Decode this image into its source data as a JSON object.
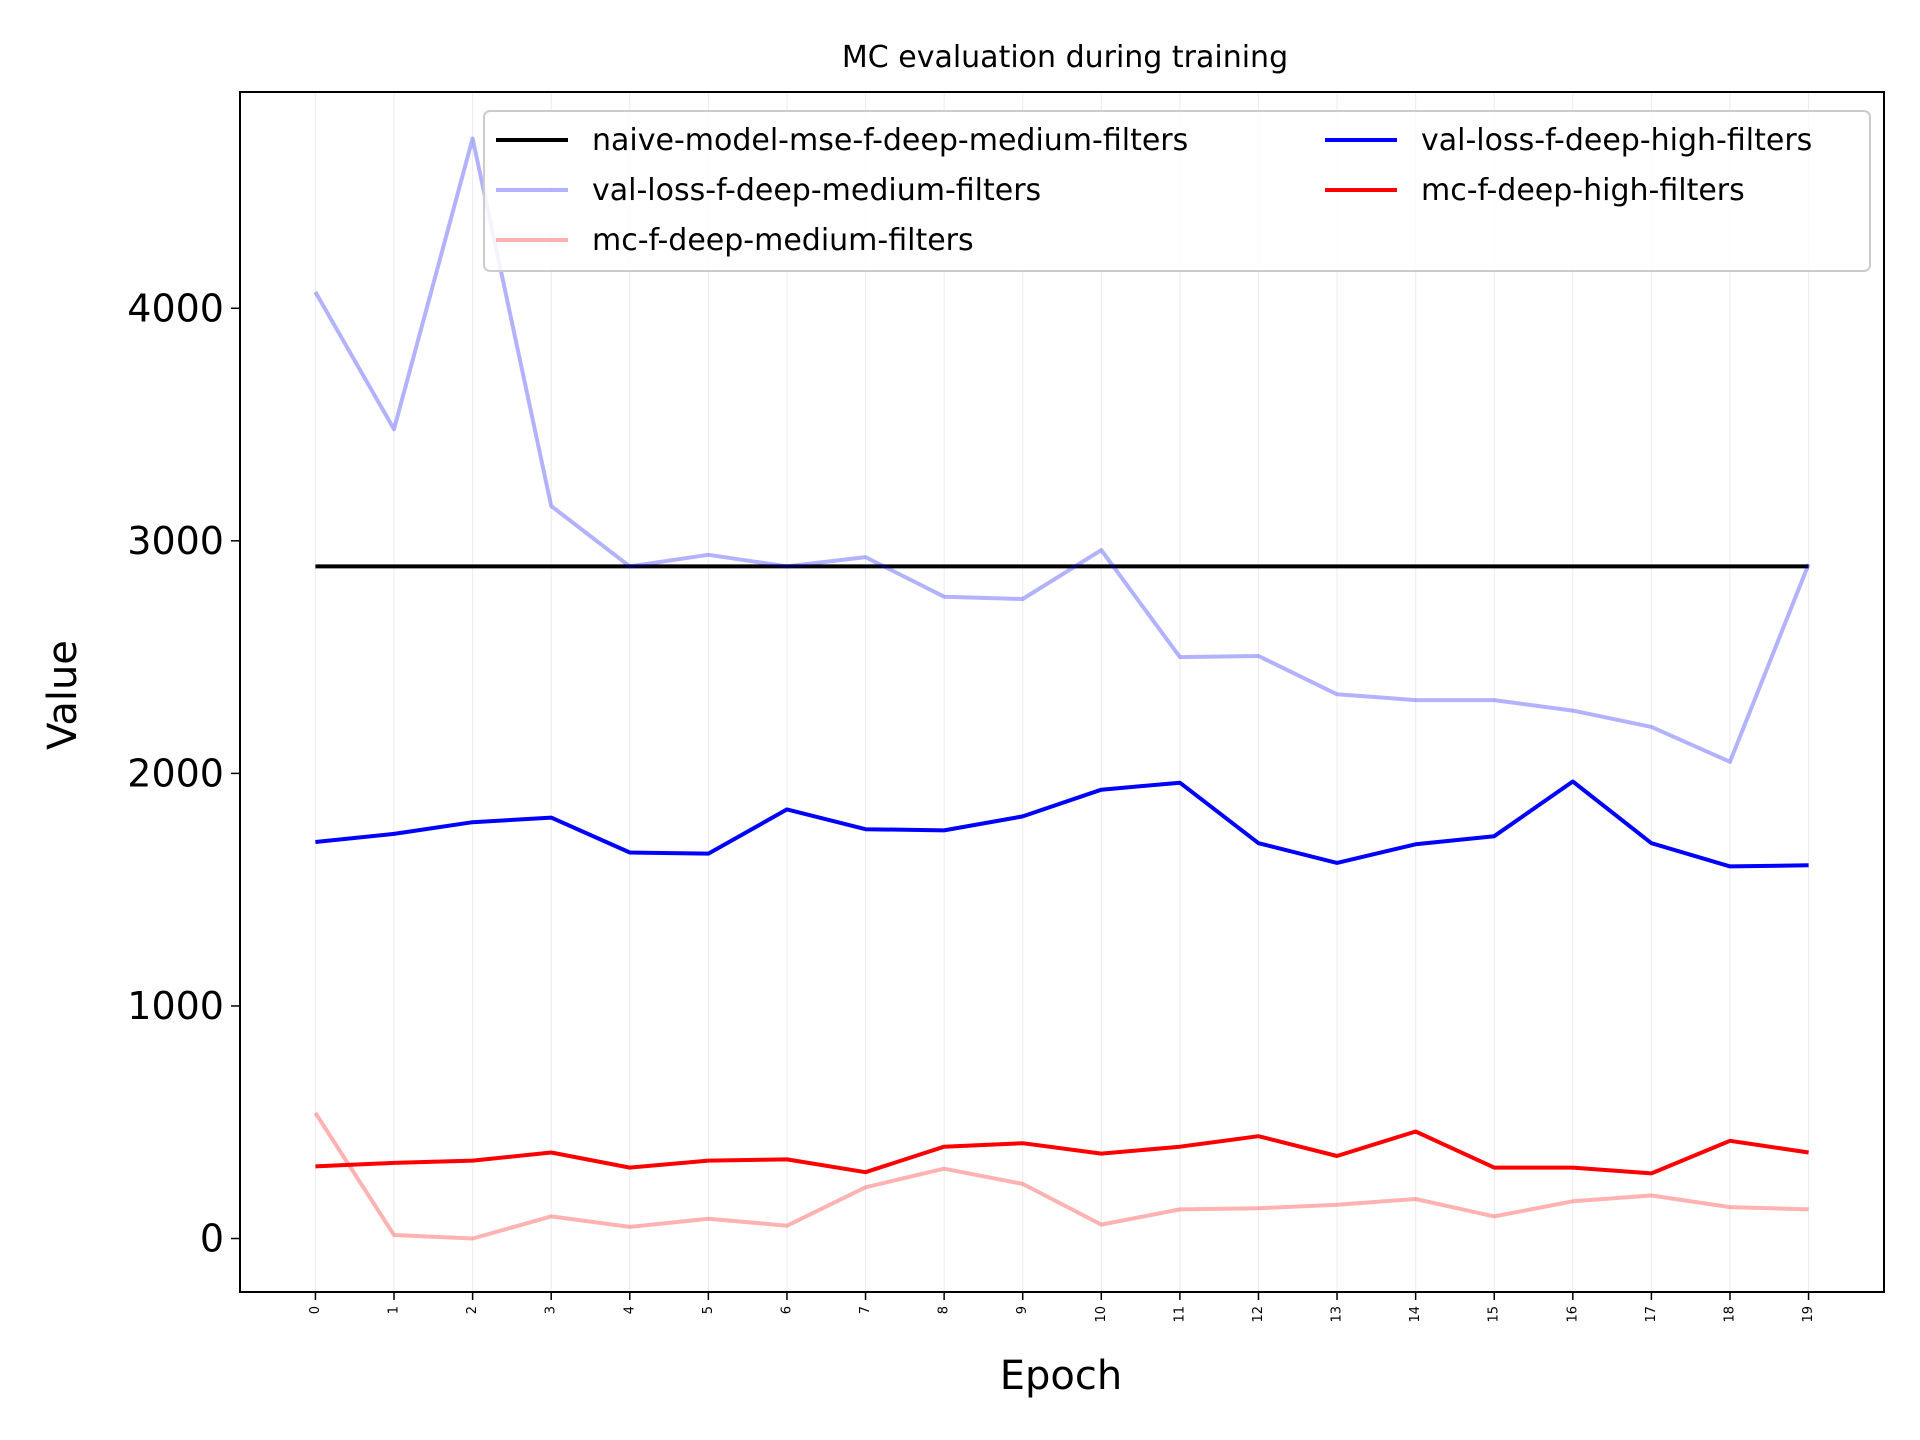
{
  "chart_data": {
    "type": "line",
    "title": "MC evaluation during training",
    "xlabel": "Epoch",
    "ylabel": "Value",
    "x": [
      0,
      1,
      2,
      3,
      4,
      5,
      6,
      7,
      8,
      9,
      10,
      11,
      12,
      13,
      14,
      15,
      16,
      17,
      18,
      19
    ],
    "y_ticks": [
      0,
      1000,
      2000,
      3000,
      4000
    ],
    "ylim": [
      -230,
      4930
    ],
    "xlim": [
      -0.96,
      19.96
    ],
    "grid": "vertical-light",
    "legend_position": "top-right",
    "legend_columns": 2,
    "series": [
      {
        "name": "naive-model-mse-f-deep-medium-filters",
        "color": "#000000",
        "opacity": 1.0,
        "values": [
          2890,
          2890,
          2890,
          2890,
          2890,
          2890,
          2890,
          2890,
          2890,
          2890,
          2890,
          2890,
          2890,
          2890,
          2890,
          2890,
          2890,
          2890,
          2890,
          2890
        ]
      },
      {
        "name": "val-loss-f-deep-medium-filters",
        "color": "#0000ff",
        "opacity": 0.3,
        "values": [
          4070,
          3480,
          4730,
          3150,
          2890,
          2940,
          2890,
          2930,
          2760,
          2750,
          2960,
          2500,
          2505,
          2340,
          2315,
          2315,
          2270,
          2200,
          2050,
          2900
        ]
      },
      {
        "name": "mc-f-deep-medium-filters",
        "color": "#ff0000",
        "opacity": 0.3,
        "values": [
          540,
          15,
          0,
          95,
          50,
          85,
          55,
          220,
          300,
          235,
          60,
          125,
          130,
          145,
          170,
          95,
          160,
          185,
          135,
          125
        ]
      },
      {
        "name": "val-loss-f-deep-high-filters",
        "color": "#0000ff",
        "opacity": 1.0,
        "values": [
          1705,
          1740,
          1790,
          1810,
          1660,
          1655,
          1845,
          1760,
          1755,
          1815,
          1930,
          1960,
          1700,
          1615,
          1695,
          1730,
          1965,
          1700,
          1600,
          1605
        ]
      },
      {
        "name": "mc-f-deep-high-filters",
        "color": "#ff0000",
        "opacity": 1.0,
        "values": [
          310,
          325,
          335,
          370,
          305,
          335,
          340,
          285,
          395,
          410,
          365,
          395,
          440,
          355,
          460,
          305,
          305,
          280,
          420,
          370
        ]
      }
    ]
  }
}
